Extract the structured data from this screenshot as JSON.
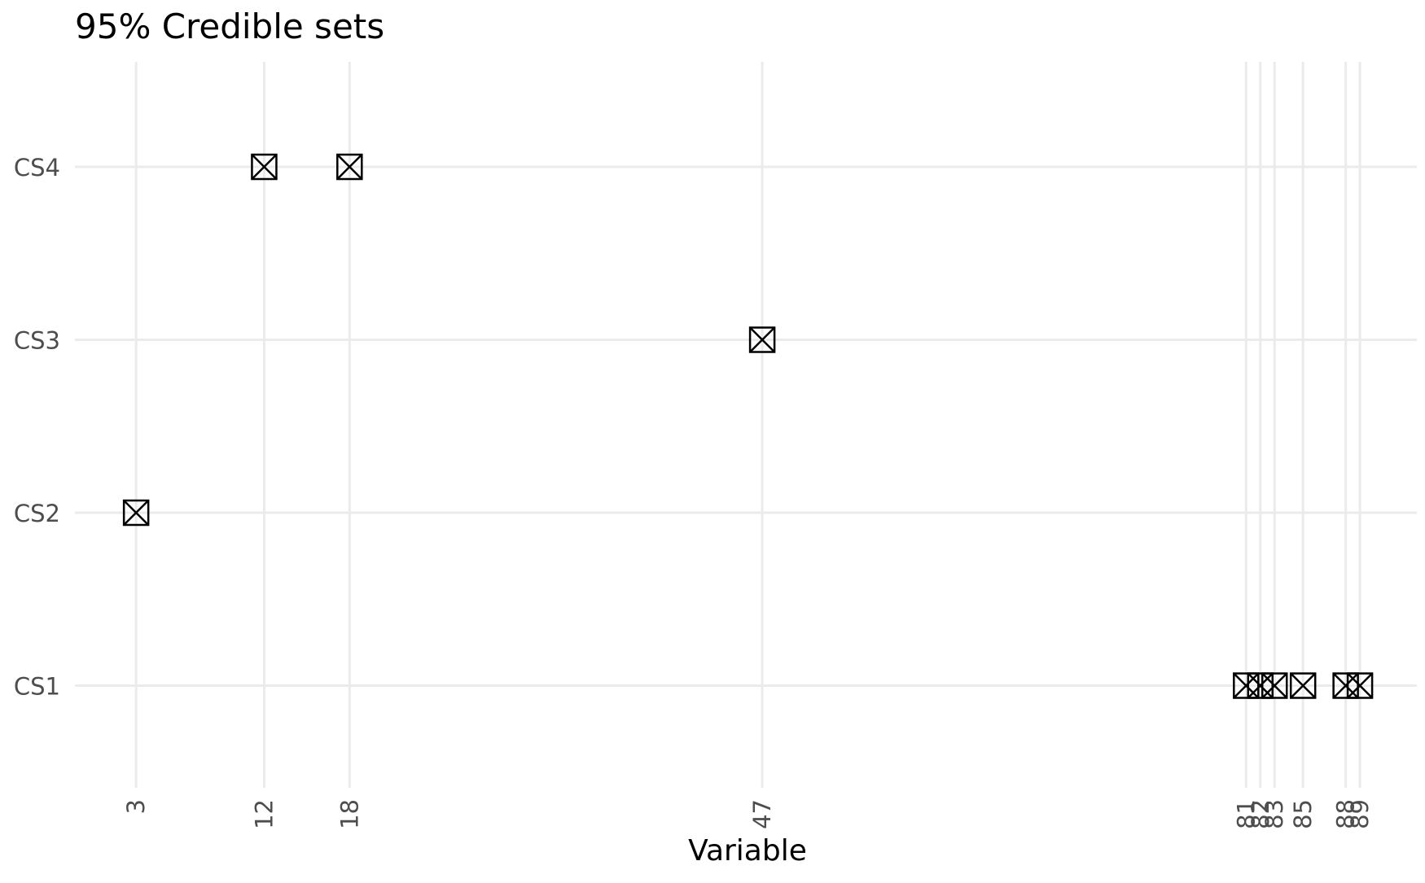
{
  "chart_data": {
    "type": "scatter",
    "title": "95% Credible sets",
    "xlabel": "Variable",
    "ylabel": "",
    "x_ticks": [
      3,
      12,
      18,
      47,
      81,
      82,
      83,
      85,
      88,
      89
    ],
    "x_tick_labels": [
      "3",
      "12",
      "18",
      "47",
      "81",
      "82",
      "83",
      "85",
      "88",
      "89"
    ],
    "y_categories": [
      "CS1",
      "CS2",
      "CS3",
      "CS4"
    ],
    "xlim": [
      -1.3,
      93
    ],
    "marker": "square-with-x",
    "grid": true,
    "points": [
      {
        "x": 81,
        "y": "CS1"
      },
      {
        "x": 82,
        "y": "CS1"
      },
      {
        "x": 83,
        "y": "CS1"
      },
      {
        "x": 85,
        "y": "CS1"
      },
      {
        "x": 88,
        "y": "CS1"
      },
      {
        "x": 89,
        "y": "CS1"
      },
      {
        "x": 3,
        "y": "CS2"
      },
      {
        "x": 47,
        "y": "CS3"
      },
      {
        "x": 12,
        "y": "CS4"
      },
      {
        "x": 18,
        "y": "CS4"
      }
    ],
    "colors": {
      "grid": "#ebebeb",
      "marker": "#000000",
      "tick_text": "#4d4d4d"
    }
  }
}
